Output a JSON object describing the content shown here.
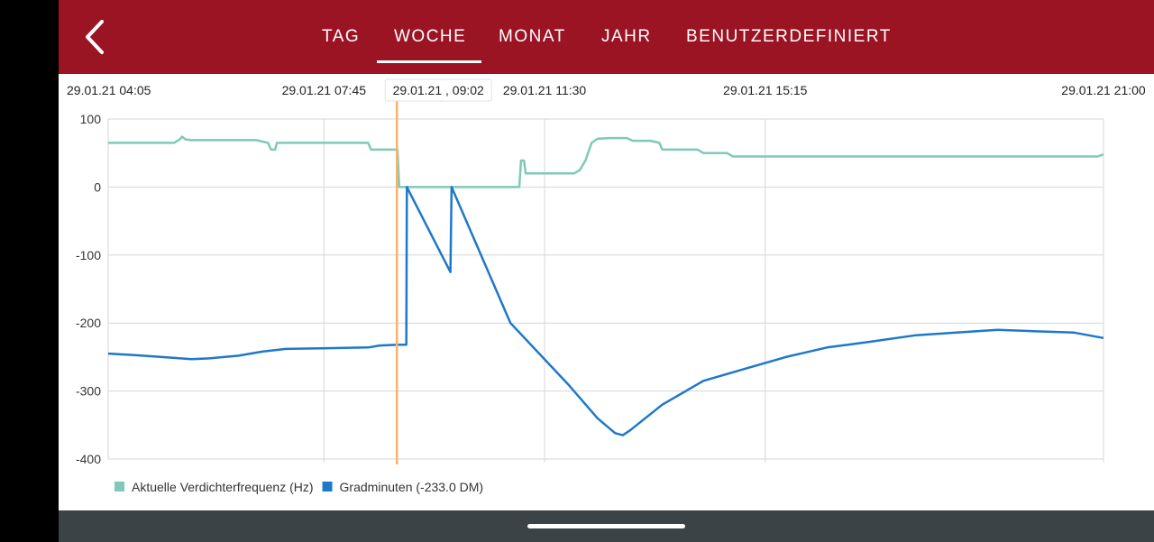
{
  "header": {
    "back_icon": "chevron-left-icon",
    "tabs": [
      {
        "label": "TAG",
        "active": false
      },
      {
        "label": "WOCHE",
        "active": true
      },
      {
        "label": "MONAT",
        "active": false
      },
      {
        "label": "JAHR",
        "active": false
      },
      {
        "label": "BENUTZERDEFINIERT",
        "active": false
      }
    ]
  },
  "colors": {
    "header_bg": "#9b1424",
    "series_frequency": "#7fc9b8",
    "series_gradminuten": "#1e78c8",
    "crosshair": "#f7b26c",
    "bottom_bar": "#3c4347"
  },
  "chart_data": {
    "type": "line",
    "x_tick_labels": [
      "29.01.21 04:05",
      "29.01.21 07:45",
      "29.01.21 11:30",
      "29.01.21 15:15",
      "29.01.21 21:00"
    ],
    "x_ticks_hours": [
      4.083,
      7.75,
      11.5,
      15.25,
      21.0
    ],
    "x_range_hours": [
      4.083,
      21.0
    ],
    "ylim": [
      -400,
      100
    ],
    "y_ticks": [
      100,
      0,
      -100,
      -200,
      -300,
      -400
    ],
    "grid": true,
    "legend_position": "bottom-left",
    "crosshair": {
      "hour": 8.99,
      "label": "29.01.21 , 09:02"
    },
    "series": [
      {
        "name": "Aktuelle Verdichterfrequenz (Hz)",
        "color": "#7fc9b8",
        "points": [
          [
            4.083,
            65
          ],
          [
            5.2,
            65
          ],
          [
            5.3,
            70
          ],
          [
            5.34,
            74
          ],
          [
            5.4,
            70
          ],
          [
            5.5,
            69
          ],
          [
            6.6,
            69
          ],
          [
            6.8,
            65
          ],
          [
            6.85,
            55
          ],
          [
            6.92,
            55
          ],
          [
            6.95,
            65
          ],
          [
            8.5,
            65
          ],
          [
            8.55,
            55
          ],
          [
            9.0,
            55
          ],
          [
            9.03,
            0
          ],
          [
            11.07,
            0
          ],
          [
            11.1,
            39
          ],
          [
            11.15,
            39
          ],
          [
            11.18,
            20
          ],
          [
            12.0,
            20
          ],
          [
            12.1,
            25
          ],
          [
            12.2,
            40
          ],
          [
            12.3,
            65
          ],
          [
            12.4,
            71
          ],
          [
            12.6,
            72
          ],
          [
            12.9,
            72
          ],
          [
            13.0,
            68
          ],
          [
            13.3,
            68
          ],
          [
            13.45,
            65
          ],
          [
            13.5,
            55
          ],
          [
            14.1,
            55
          ],
          [
            14.2,
            50
          ],
          [
            14.6,
            50
          ],
          [
            14.7,
            45
          ],
          [
            20.9,
            45
          ],
          [
            21.0,
            48
          ]
        ]
      },
      {
        "name": "Gradminuten (-233.0 DM)",
        "legend_value": "-233.0 DM",
        "color": "#1e78c8",
        "points": [
          [
            4.083,
            -245
          ],
          [
            4.5,
            -247
          ],
          [
            5.0,
            -250
          ],
          [
            5.5,
            -253
          ],
          [
            5.8,
            -252
          ],
          [
            6.3,
            -248
          ],
          [
            6.7,
            -242
          ],
          [
            7.1,
            -238
          ],
          [
            7.8,
            -237
          ],
          [
            8.5,
            -236
          ],
          [
            8.7,
            -233
          ],
          [
            9.0,
            -232
          ],
          [
            9.15,
            -232
          ],
          [
            9.16,
            0
          ],
          [
            9.9,
            -125
          ],
          [
            9.92,
            0
          ],
          [
            10.92,
            -200
          ],
          [
            11.9,
            -290
          ],
          [
            12.4,
            -340
          ],
          [
            12.7,
            -362
          ],
          [
            12.83,
            -365
          ],
          [
            12.95,
            -358
          ],
          [
            13.5,
            -320
          ],
          [
            14.2,
            -285
          ],
          [
            15.0,
            -265
          ],
          [
            15.6,
            -250
          ],
          [
            16.3,
            -236
          ],
          [
            17.0,
            -228
          ],
          [
            17.8,
            -218
          ],
          [
            18.5,
            -214
          ],
          [
            19.2,
            -210
          ],
          [
            19.8,
            -212
          ],
          [
            20.5,
            -214
          ],
          [
            21.0,
            -222
          ]
        ]
      }
    ]
  }
}
